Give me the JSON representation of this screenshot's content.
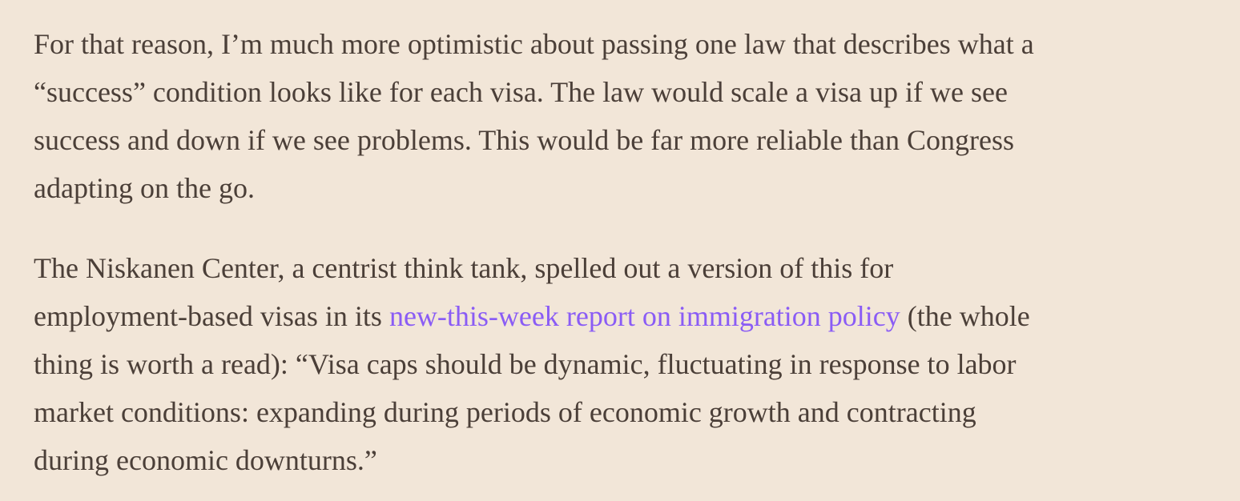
{
  "article": {
    "paragraphs": [
      {
        "lines": [
          "For that reason, I’m much more optimistic about passing one law that describes what a",
          "“success” condition looks like for each visa. The law would scale a visa up if we see",
          "success and down if we see problems. This would be far more reliable than Congress",
          "adapting on the go."
        ]
      },
      {
        "lines": [
          "The Niskanen Center, a centrist think tank, spelled out a version of this for",
          "thing is worth a read): “Visa caps should be dynamic, fluctuating in response to labor",
          "market conditions: expanding during periods of economic growth and contracting",
          "during economic downturns.”"
        ],
        "link_line": {
          "before": "employment-based visas in its ",
          "link": "new-this-week report on immigration policy",
          "after": " (the whole"
        }
      }
    ]
  }
}
